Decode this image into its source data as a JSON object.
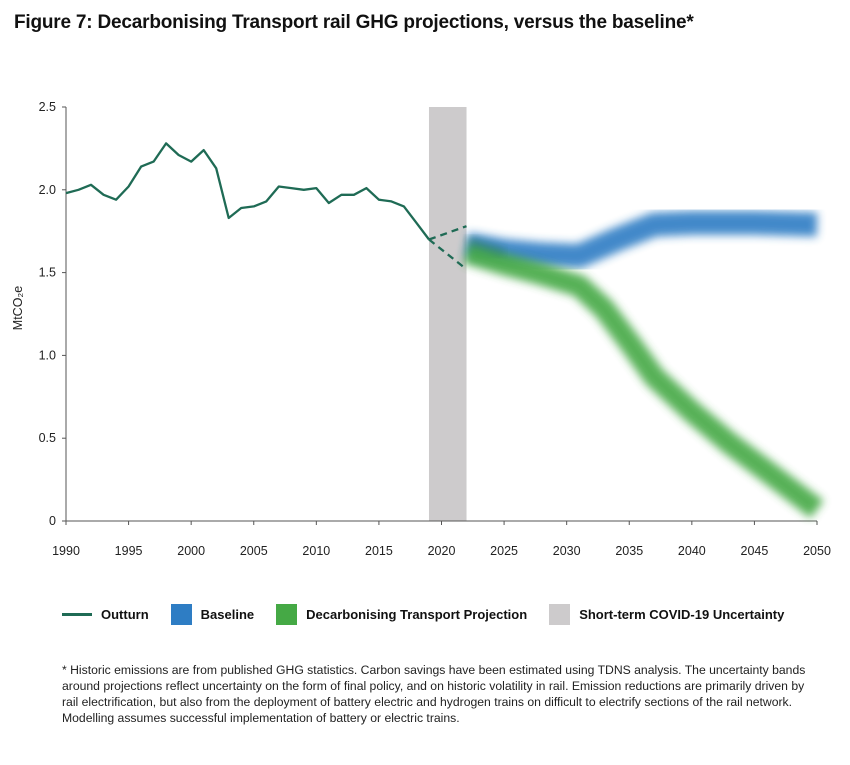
{
  "title": "Figure 7: Decarbonising Transport rail GHG projections, versus the baseline*",
  "colors": {
    "outturn": "#1f6b55",
    "baseline": "#2e7dc4",
    "decarbonising": "#45a945",
    "covid": "#cdcbcc",
    "axis": "#555555"
  },
  "legend": {
    "outturn": "Outturn",
    "baseline": "Baseline",
    "decarbonising": "Decarbonising Transport Projection",
    "covid": "Short-term COVID-19 Uncertainty"
  },
  "footnote": "* Historic emissions are from published GHG statistics. Carbon savings have been estimated using TDNS analysis. The uncertainty bands around projections reflect uncertainty on the form of final policy, and on historic volatility in rail. Emission reductions are primarily driven by rail electrification, but also from the deployment of battery electric and hydrogen trains on difficult to electrify sections of the rail network. Modelling assumes successful implementation of battery or electric trains.",
  "chart_data": {
    "type": "line",
    "ylabel": "MtCO₂e",
    "xlim": [
      1990,
      2050
    ],
    "ylim": [
      0,
      2.5
    ],
    "x_ticks": [
      "1990",
      "1995",
      "2000",
      "2005",
      "2010",
      "2015",
      "2020",
      "2025",
      "2030",
      "2035",
      "2040",
      "2045",
      "2050"
    ],
    "y_ticks": [
      "0",
      "0.5",
      "1.0",
      "1.5",
      "2.0",
      "2.5"
    ],
    "covid_band": {
      "x_start": 2019,
      "x_end": 2022
    },
    "series": [
      {
        "name": "Outturn",
        "x": [
          1990,
          1991,
          1992,
          1993,
          1994,
          1995,
          1996,
          1997,
          1998,
          1999,
          2000,
          2001,
          2002,
          2003,
          2004,
          2005,
          2006,
          2007,
          2008,
          2009,
          2010,
          2011,
          2012,
          2013,
          2014,
          2015,
          2016,
          2017,
          2018,
          2019
        ],
        "y": [
          1.98,
          2.0,
          2.03,
          1.97,
          1.94,
          2.02,
          2.14,
          2.17,
          2.28,
          2.21,
          2.17,
          2.24,
          2.13,
          1.83,
          1.89,
          1.9,
          1.93,
          2.02,
          2.01,
          2.0,
          2.01,
          1.92,
          1.97,
          1.97,
          2.01,
          1.94,
          1.93,
          1.9,
          1.8,
          1.7
        ]
      },
      {
        "name": "Outturn (COVID range upper)",
        "x": [
          2019,
          2022
        ],
        "y": [
          1.7,
          1.78
        ]
      },
      {
        "name": "Outturn (COVID range lower)",
        "x": [
          2019,
          2022
        ],
        "y": [
          1.7,
          1.52
        ]
      },
      {
        "name": "Baseline",
        "x": [
          2022,
          2025,
          2028,
          2031,
          2034,
          2037,
          2040,
          2045,
          2050
        ],
        "y": [
          1.67,
          1.63,
          1.61,
          1.6,
          1.7,
          1.79,
          1.8,
          1.8,
          1.79
        ]
      },
      {
        "name": "Decarbonising Transport Projection",
        "x": [
          2022,
          2025,
          2028,
          2031,
          2033,
          2035,
          2037,
          2040,
          2043,
          2046,
          2050
        ],
        "y": [
          1.62,
          1.55,
          1.49,
          1.42,
          1.28,
          1.08,
          0.87,
          0.66,
          0.47,
          0.3,
          0.07
        ]
      }
    ]
  }
}
